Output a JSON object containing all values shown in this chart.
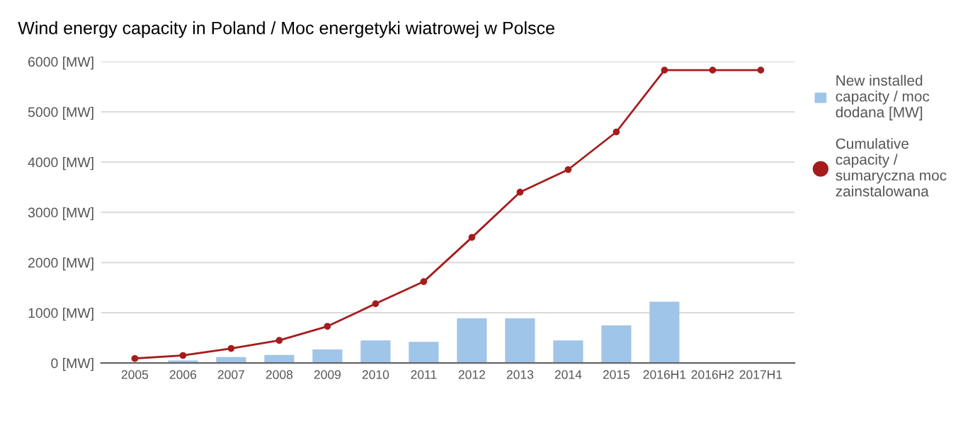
{
  "chart_data": {
    "type": "bar",
    "title": "Wind energy capacity in Poland / Moc energetyki wiatrowej w Polsce",
    "categories": [
      "2005",
      "2006",
      "2007",
      "2008",
      "2009",
      "2010",
      "2011",
      "2012",
      "2013",
      "2014",
      "2015",
      "2016H1",
      "2016H2",
      "2017H1"
    ],
    "series": [
      {
        "name": "New installed capacity / moc dodana [MW]",
        "color": "#9fc5e8",
        "values": [
          0,
          50,
          120,
          160,
          270,
          450,
          420,
          890,
          890,
          450,
          750,
          1220,
          0,
          0
        ]
      },
      {
        "name": "Cumulative capacity / sumaryczna moc zainstalowana",
        "type": "line",
        "color": "#a61c1c",
        "marker": "circle",
        "values": [
          90,
          150,
          290,
          450,
          730,
          1180,
          1620,
          2500,
          3400,
          3850,
          4600,
          5830,
          5830,
          5830
        ]
      }
    ],
    "ylim": [
      0,
      6000
    ],
    "yticks": [
      {
        "value": 0,
        "label": "0 [MW]"
      },
      {
        "value": 1000,
        "label": "1000 [MW]"
      },
      {
        "value": 2000,
        "label": "2000 [MW]"
      },
      {
        "value": 3000,
        "label": "3000 [MW]"
      },
      {
        "value": 4000,
        "label": "4000 [MW]"
      },
      {
        "value": 5000,
        "label": "5000 [MW]"
      },
      {
        "value": 6000,
        "label": "6000 [MW]"
      }
    ],
    "grid": "y",
    "legend": "right"
  }
}
